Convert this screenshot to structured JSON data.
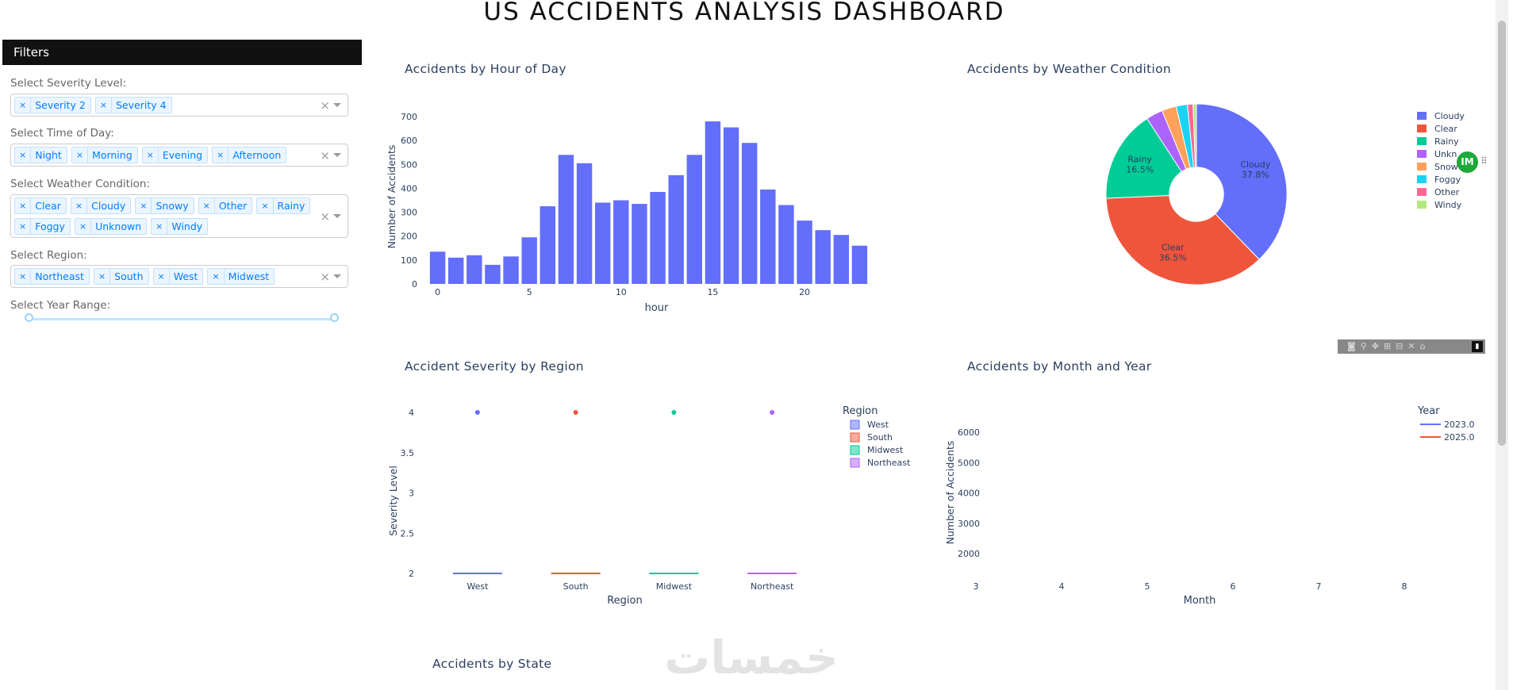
{
  "page_title": "US ACCIDENTS ANALYSIS DASHBOARD",
  "filters": {
    "header": "Filters",
    "severity": {
      "label": "Select Severity Level:",
      "chips": [
        "Severity 2",
        "Severity 4"
      ]
    },
    "time_of_day": {
      "label": "Select Time of Day:",
      "chips": [
        "Night",
        "Morning",
        "Evening",
        "Afternoon"
      ]
    },
    "weather": {
      "label": "Select Weather Condition:",
      "chips": [
        "Clear",
        "Cloudy",
        "Snowy",
        "Other",
        "Rainy",
        "Foggy",
        "Unknown",
        "Windy"
      ]
    },
    "region": {
      "label": "Select Region:",
      "chips": [
        "Northeast",
        "South",
        "West",
        "Midwest"
      ]
    },
    "year_range": {
      "label": "Select Year Range:",
      "low": 0,
      "high": 1
    },
    "clear_icon": "×",
    "chip_remove_icon": "×"
  },
  "modebar_icons": [
    "camera-icon",
    "zoom-icon",
    "pan-icon",
    "zoom-in-icon",
    "zoom-out-icon",
    "autoscale-icon",
    "home-icon"
  ],
  "modebar_logo_icon": "plotly-logo-icon",
  "extension_badge": "IM",
  "watermark": "خمسات",
  "colors": {
    "bar": "#636efa",
    "red": "#EF553B",
    "green": "#00cc96",
    "purple": "#ab63fa",
    "orange": "#FFA15A",
    "cyan": "#19d3f3",
    "pink": "#FF6692",
    "lime": "#B6E880"
  },
  "chart_data": [
    {
      "id": "hour",
      "type": "bar",
      "title": "Accidents by Hour of Day",
      "xlabel": "hour",
      "ylabel": "Number of Accidents",
      "x": [
        0,
        1,
        2,
        3,
        4,
        5,
        6,
        7,
        8,
        9,
        10,
        11,
        12,
        13,
        14,
        15,
        16,
        17,
        18,
        19,
        20,
        21,
        22,
        23
      ],
      "values": [
        135,
        110,
        120,
        80,
        115,
        195,
        325,
        540,
        505,
        340,
        350,
        335,
        385,
        455,
        540,
        680,
        655,
        590,
        395,
        330,
        265,
        225,
        205,
        160
      ],
      "ylim": [
        0,
        730
      ],
      "yticks": [
        0,
        100,
        200,
        300,
        400,
        500,
        600,
        700
      ],
      "xticks": [
        0,
        5,
        10,
        15,
        20
      ]
    },
    {
      "id": "weather",
      "type": "pie",
      "title": "Accidents by Weather Condition",
      "slices": [
        {
          "label": "Cloudy",
          "value": 37.8,
          "text": "Cloudy\n37.8%"
        },
        {
          "label": "Clear",
          "value": 36.5,
          "text": "Clear\n36.5%"
        },
        {
          "label": "Rainy",
          "value": 16.5,
          "text": "Rainy\n16.5%"
        },
        {
          "label": "Unknown",
          "value": 3.0,
          "text": ""
        },
        {
          "label": "Snowy",
          "value": 2.6,
          "text": ""
        },
        {
          "label": "Foggy",
          "value": 2.0,
          "text": ""
        },
        {
          "label": "Other",
          "value": 1.0,
          "text": ""
        },
        {
          "label": "Windy",
          "value": 0.6,
          "text": ""
        }
      ],
      "legend": [
        "Cloudy",
        "Clear",
        "Rainy",
        "Unkn",
        "Snow",
        "Foggy",
        "Other",
        "Windy"
      ],
      "hole": 0.3
    },
    {
      "id": "severity",
      "type": "box",
      "title": "Accident Severity by Region",
      "xlabel": "Region",
      "ylabel": "Severity Level",
      "categories": [
        "West",
        "South",
        "Midwest",
        "Northeast"
      ],
      "box_low": 2,
      "outlier": 4,
      "ylim": [
        2,
        4
      ],
      "yticks": [
        "2",
        "2.5",
        "3",
        "3.5",
        "4"
      ],
      "legend_title": "Region",
      "legend": [
        "West",
        "South",
        "Midwest",
        "Northeast"
      ]
    },
    {
      "id": "month",
      "type": "line",
      "title": "Accidents by Month and Year",
      "xlabel": "Month",
      "ylabel": "Number of Accidents",
      "xticks": [
        "3",
        "4",
        "5",
        "6",
        "7",
        "8"
      ],
      "yticks": [
        "2000",
        "3000",
        "4000",
        "5000",
        "6000"
      ],
      "legend_title": "Year",
      "series": [
        {
          "name": "2023.0",
          "values": []
        },
        {
          "name": "2025.0",
          "values": []
        }
      ]
    },
    {
      "id": "state",
      "type": "bar",
      "title": "Accidents by State"
    }
  ]
}
